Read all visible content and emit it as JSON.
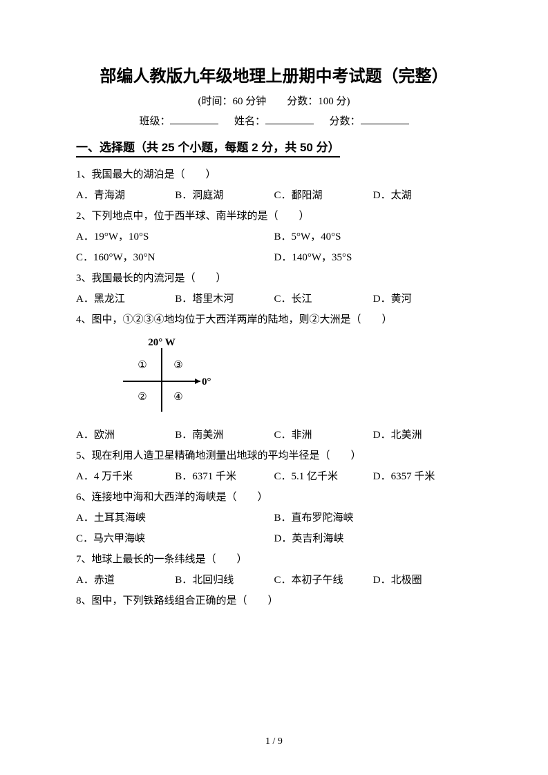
{
  "title": "部编人教版九年级地理上册期中考试题（完整）",
  "meta": "(时间：60 分钟　　分数：100 分)",
  "info": {
    "class_label": "班级：",
    "name_label": "姓名：",
    "score_label": "分数："
  },
  "section": "一、选择题（共 25 个小题，每题 2 分，共 50 分）",
  "q1": {
    "stem": "1、我国最大的湖泊是（　　）",
    "A": "A．青海湖",
    "B": "B．洞庭湖",
    "C": "C．鄱阳湖",
    "D": "D．太湖"
  },
  "q2": {
    "stem": "2、下列地点中，位于西半球、南半球的是（　　）",
    "A": "A．19°W，10°S",
    "B": "B．5°W，40°S",
    "C": "C．160°W，30°N",
    "D": "D．140°W，35°S"
  },
  "q3": {
    "stem": "3、我国最长的内流河是（　　）",
    "A": "A．黑龙江",
    "B": "B．塔里木河",
    "C": "C．长江",
    "D": "D．黄河"
  },
  "q4": {
    "stem": "4、图中，①②③④地均位于大西洋两岸的陆地，则②大洲是（　　）",
    "A": "A．欧洲",
    "B": "B．南美洲",
    "C": "C．非洲",
    "D": "D．北美洲",
    "diagram": {
      "lon_label": "20° W",
      "lat_label": "0°",
      "c1": "①",
      "c2": "②",
      "c3": "③",
      "c4": "④",
      "width": 150,
      "height": 120,
      "stroke": "#000000",
      "font_size": 15
    }
  },
  "q5": {
    "stem": "5、现在利用人造卫星精确地测量出地球的平均半径是（　　）",
    "A": "A．4 万千米",
    "B": "B．6371 千米",
    "C": "C．5.1 亿千米",
    "D": "D．6357 千米"
  },
  "q6": {
    "stem": "6、连接地中海和大西洋的海峡是（　　）",
    "A": "A．土耳其海峡",
    "B": "B．直布罗陀海峡",
    "C": "C．马六甲海峡",
    "D": "D．英吉利海峡"
  },
  "q7": {
    "stem": "7、地球上最长的一条纬线是（　　）",
    "A": "A．赤道",
    "B": "B．北回归线",
    "C": "C．本初子午线",
    "D": "D．北极圈"
  },
  "q8": {
    "stem": "8、图中，下列铁路线组合正确的是（　　）"
  },
  "footer": "1 / 9"
}
